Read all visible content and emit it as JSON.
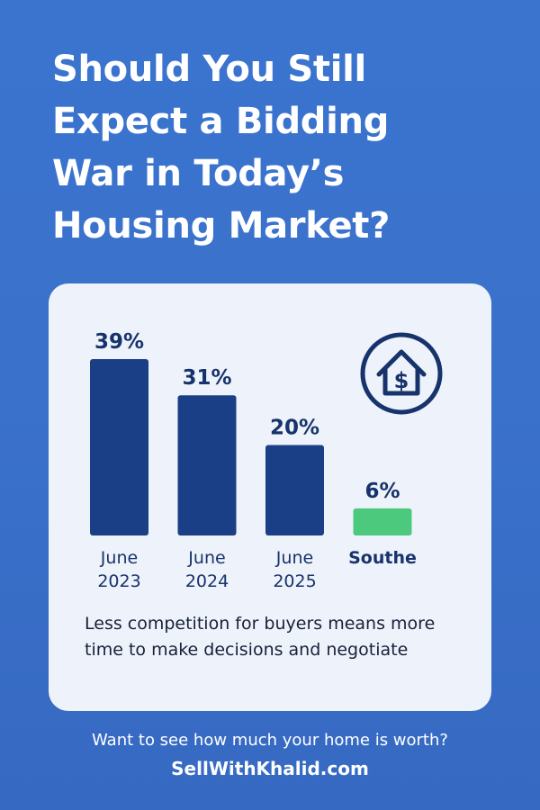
{
  "title_lines": [
    "Should You Still",
    "Expect a Bidding",
    "War in Today’s",
    "Housing Market?"
  ],
  "chart_data": {
    "type": "bar",
    "categories": [
      [
        "June",
        "2023"
      ],
      [
        "June",
        "2024"
      ],
      [
        "June",
        "2025"
      ],
      [
        "Southe"
      ]
    ],
    "values": [
      39,
      31,
      20,
      6
    ],
    "value_labels": [
      "39%",
      "31%",
      "20%",
      "6%"
    ],
    "bar_colors": [
      "#1a3f86",
      "#1a3f86",
      "#1a3f86",
      "#4cc97c"
    ],
    "ylim": [
      0,
      39
    ],
    "grid": false,
    "legend": "none"
  },
  "card": {
    "icon": "house-dollar-icon",
    "caption": "Less competition for buyers means more time to make decisions and negotiate"
  },
  "footer": {
    "question": "Want to see how much your home is worth?",
    "website": "SellWithKhalid.com"
  },
  "colors": {
    "background": "#3a72cc",
    "card": "#eef2fa",
    "bar": "#1a3f86",
    "highlight_bar": "#4cc97c",
    "text_dark": "#17336b"
  }
}
